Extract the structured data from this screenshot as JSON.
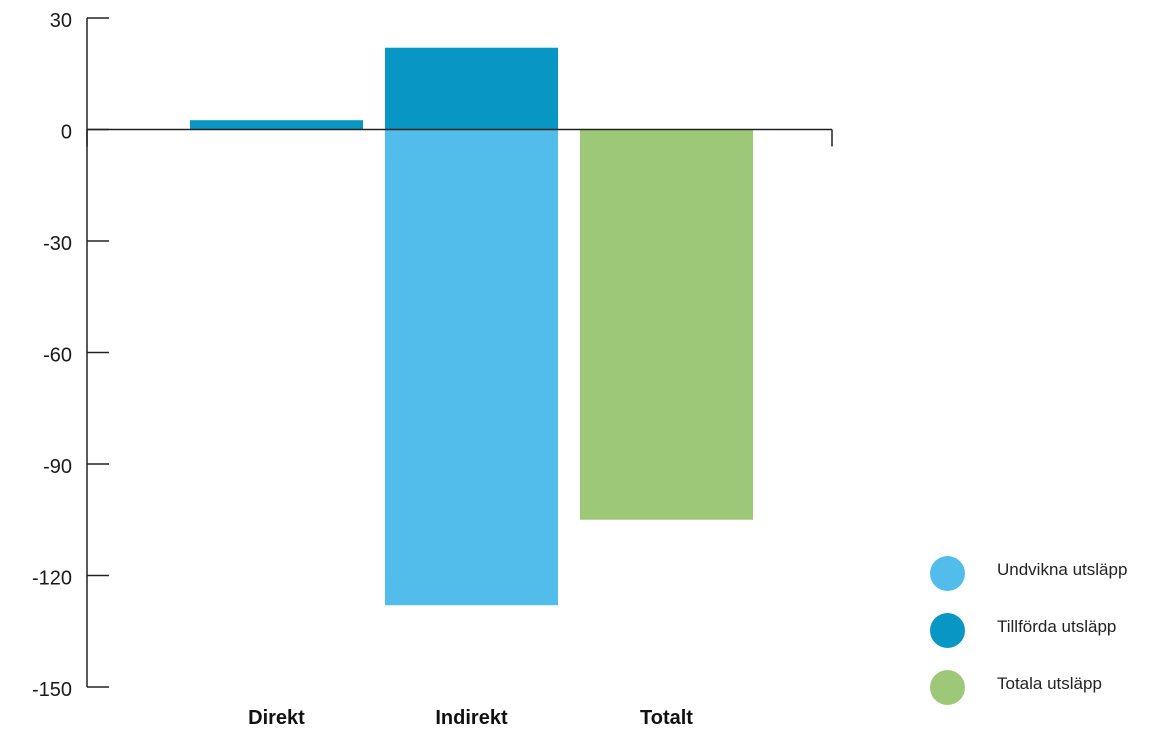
{
  "chart_data": {
    "type": "bar",
    "categories": [
      "Direkt",
      "Indirekt",
      "Totalt"
    ],
    "y_ticks": [
      "30",
      "0",
      "-30",
      "-60",
      "-90",
      "-120",
      "-150"
    ],
    "ylim": [
      -150,
      30
    ],
    "grid": false,
    "legend_position": "bottom-right",
    "series": [
      {
        "name": "Undvikna utsläpp",
        "color": "#52bdeb",
        "values": [
          0,
          -128,
          0
        ]
      },
      {
        "name": "Tillförda utsläpp",
        "color": "#0896c4",
        "values": [
          2.5,
          22,
          0
        ]
      },
      {
        "name": "Totala utsläpp",
        "color": "#9cc878",
        "values": [
          0,
          0,
          -105
        ]
      }
    ]
  }
}
